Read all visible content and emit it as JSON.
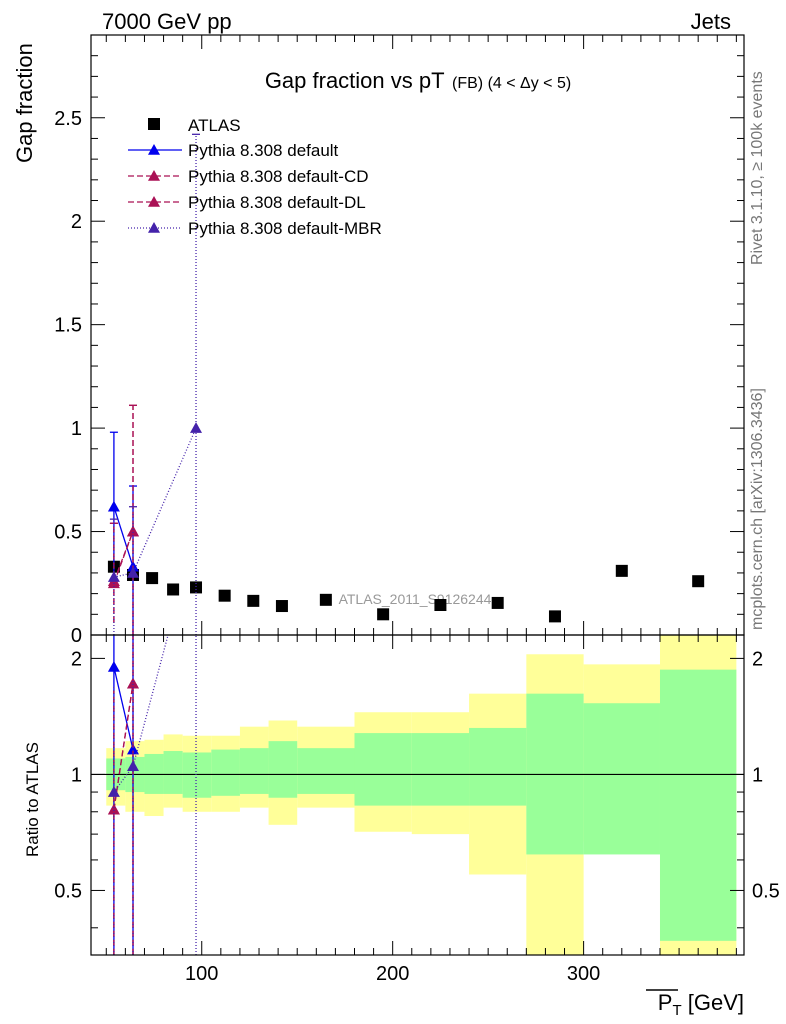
{
  "header": {
    "left": "7000 GeV pp",
    "right": "Jets"
  },
  "side_labels": {
    "rivet": "Rivet 3.1.10, ≥ 100k events",
    "mcplots": "mcplots.cern.ch [arXiv:1306.3436]"
  },
  "chart_data": {
    "type": "scatter",
    "title_main": "Gap fraction vs pT",
    "title_sub": "(FB) (4 < Δy < 5)",
    "watermark": "ATLAS_2011_S9126244",
    "xlabel": "P_T [GeV]",
    "ylabel": "Gap fraction",
    "ratio_ylabel": "Ratio to ATLAS",
    "xlim": [
      42,
      384
    ],
    "ylim": [
      0,
      2.9
    ],
    "ratio_ylim": [
      0.34,
      2.3
    ],
    "x_ticks": [
      100,
      200,
      300
    ],
    "y_ticks": [
      0,
      0.5,
      1,
      1.5,
      2,
      2.5
    ],
    "y_tick_labels": [
      "0",
      "0.5",
      "1",
      "1.5",
      "2",
      "2.5"
    ],
    "ratio_ticks": [
      0.5,
      1,
      2
    ],
    "ratio_tick_labels": [
      "0.5",
      "1",
      "2"
    ],
    "legend_position": "top-left",
    "atlas": {
      "name": "ATLAS",
      "x": [
        54,
        64,
        74,
        85,
        97,
        112,
        127,
        142,
        165,
        195,
        225,
        255,
        285,
        320,
        360
      ],
      "y": [
        0.33,
        0.29,
        0.275,
        0.22,
        0.23,
        0.19,
        0.165,
        0.14,
        0.17,
        0.1,
        0.145,
        0.155,
        0.09,
        0.31,
        0.26
      ],
      "bins": [
        [
          50,
          60
        ],
        [
          60,
          70
        ],
        [
          70,
          80
        ],
        [
          80,
          90
        ],
        [
          90,
          105
        ],
        [
          105,
          120
        ],
        [
          120,
          135
        ],
        [
          135,
          150
        ],
        [
          150,
          180
        ],
        [
          180,
          210
        ],
        [
          210,
          240
        ],
        [
          240,
          270
        ],
        [
          270,
          300
        ],
        [
          300,
          340
        ],
        [
          340,
          380
        ]
      ],
      "band_yellow": [
        [
          0.83,
          1.17
        ],
        [
          0.8,
          1.22
        ],
        [
          0.78,
          1.23
        ],
        [
          0.82,
          1.27
        ],
        [
          0.8,
          1.26
        ],
        [
          0.8,
          1.26
        ],
        [
          0.82,
          1.33
        ],
        [
          0.74,
          1.38
        ],
        [
          0.82,
          1.33
        ],
        [
          0.71,
          1.45
        ],
        [
          0.7,
          1.45
        ],
        [
          0.55,
          1.62
        ],
        [
          0.32,
          2.05
        ],
        [
          0.67,
          1.93
        ],
        [
          0.32,
          2.3
        ]
      ],
      "band_green": [
        [
          0.91,
          1.1
        ],
        [
          0.9,
          1.11
        ],
        [
          0.89,
          1.13
        ],
        [
          0.89,
          1.15
        ],
        [
          0.87,
          1.14
        ],
        [
          0.88,
          1.16
        ],
        [
          0.89,
          1.17
        ],
        [
          0.87,
          1.22
        ],
        [
          0.89,
          1.17
        ],
        [
          0.83,
          1.28
        ],
        [
          0.83,
          1.28
        ],
        [
          0.83,
          1.32
        ],
        [
          0.62,
          1.62
        ],
        [
          0.62,
          1.53
        ],
        [
          0.37,
          1.87
        ]
      ]
    },
    "series": [
      {
        "name": "Pythia 8.308 default",
        "color": "#0000ee",
        "dash": "",
        "label_y": 0,
        "x": [
          54,
          64
        ],
        "y": [
          0.62,
          0.33
        ],
        "err": [
          [
            0.26,
            0.98
          ],
          [
            0.0,
            0.72
          ]
        ],
        "ratio": [
          1.9,
          1.16
        ],
        "ratio_err": [
          [
            0.34,
            2.3
          ],
          [
            0.34,
            2.3
          ]
        ]
      },
      {
        "name": "Pythia 8.308 default-CD",
        "color": "#aa1155",
        "dash": "6,3",
        "label_y": 0,
        "x": [
          54,
          64
        ],
        "y": [
          0.25,
          0.5
        ],
        "err": [
          [
            0.06,
            0.54
          ],
          [
            0.0,
            1.11
          ]
        ],
        "ratio": [
          0.81,
          1.72
        ],
        "ratio_err": [
          [
            0.34,
            1.65
          ],
          [
            0.34,
            2.3
          ]
        ]
      },
      {
        "name": "Pythia 8.308 default-DL",
        "color": "#aa1155",
        "dash": "6,3",
        "label_y": 0,
        "x": [
          54,
          64
        ],
        "y": [
          0.26,
          0.5
        ],
        "err": [
          [
            0.06,
            0.54
          ],
          [
            0.0,
            1.11
          ]
        ],
        "ratio": [
          0.81,
          1.72
        ],
        "ratio_err": [
          [
            0.34,
            1.65
          ],
          [
            0.34,
            2.3
          ]
        ]
      },
      {
        "name": "Pythia 8.308 default-MBR",
        "color": "#4422aa",
        "dash": "1,2",
        "label_y": 0,
        "x": [
          54,
          64,
          97
        ],
        "y": [
          0.28,
          0.3,
          1.0
        ],
        "err": [
          [
            0.0,
            0.56
          ],
          [
            0.0,
            0.62
          ],
          [
            0.0,
            2.42
          ]
        ],
        "ratio": [
          0.9,
          1.05,
          4.3
        ],
        "ratio_err": [
          [
            0.34,
            1.7
          ],
          [
            0.34,
            2.3
          ],
          [
            0.34,
            2.3
          ]
        ]
      }
    ]
  }
}
